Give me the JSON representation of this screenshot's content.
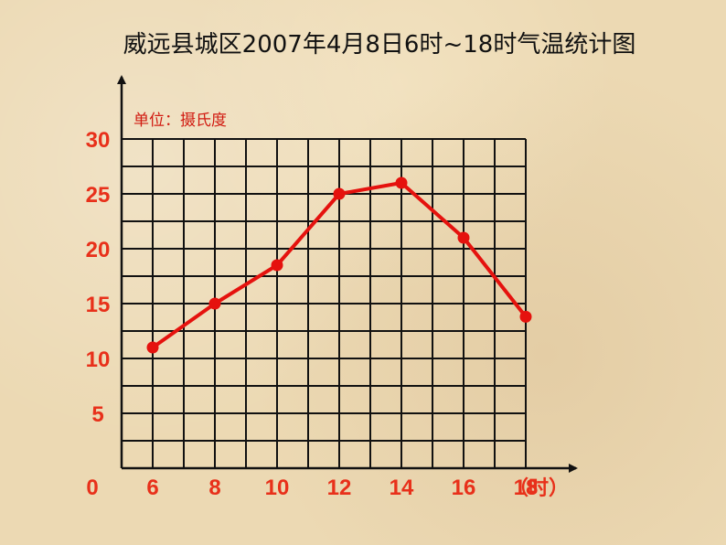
{
  "chart_data": {
    "type": "line",
    "title": "威远县城区2007年4月8日6时~18时气温统计图",
    "unit_label": "单位：摄氏度",
    "x_unit_label": "（时）",
    "origin_label": "0",
    "x": [
      6,
      8,
      10,
      12,
      14,
      16,
      18
    ],
    "x_tick_labels": [
      "6",
      "8",
      "10",
      "12",
      "14",
      "16",
      "18"
    ],
    "y_tick_labels": [
      "5",
      "10",
      "15",
      "20",
      "25",
      "30"
    ],
    "ylim": [
      0,
      30
    ],
    "grid": true,
    "series": [
      {
        "values": [
          11,
          15,
          18.5,
          25,
          26,
          21,
          13.8
        ],
        "color": "#e5120e"
      }
    ],
    "colors": {
      "grid": "#111111",
      "labels": "#e8301a",
      "unit": "#d11a10"
    }
  }
}
